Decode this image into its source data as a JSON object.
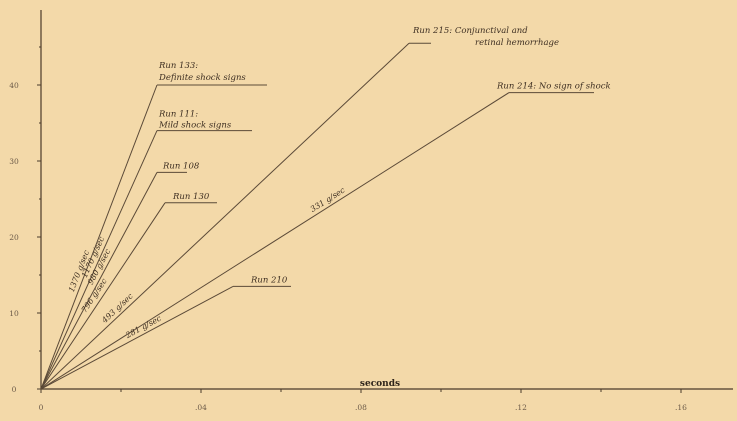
{
  "chart_data": {
    "type": "line",
    "title": "",
    "xlabel": "seconds",
    "ylabel": "",
    "xlim": [
      0,
      0.18
    ],
    "ylim": [
      0,
      48
    ],
    "x_ticks": [
      0,
      0.04,
      0.08,
      0.12,
      0.16
    ],
    "x_tick_labels": [
      "0",
      ".04",
      ".08",
      ".12",
      ".16"
    ],
    "y_ticks": [
      0,
      10,
      20,
      30,
      40
    ],
    "y_tick_labels": [
      "0",
      "10",
      "20",
      "30",
      "40"
    ],
    "grid": false,
    "series": [
      {
        "name": "Run 133: Definite shock signs",
        "rate": "1370 g/sec",
        "points": [
          [
            0,
            0
          ],
          [
            0.029,
            40
          ]
        ]
      },
      {
        "name": "Run 111: Mild shock signs",
        "rate": "1170 g/sec",
        "points": [
          [
            0,
            0
          ],
          [
            0.029,
            34
          ]
        ]
      },
      {
        "name": "Run 108",
        "rate": "980 g/sec",
        "points": [
          [
            0,
            0
          ],
          [
            0.029,
            28.5
          ]
        ]
      },
      {
        "name": "Run 130",
        "rate": "796 g/sec",
        "points": [
          [
            0,
            0
          ],
          [
            0.031,
            24.5
          ]
        ]
      },
      {
        "name": "Run 215: Conjunctival and retinal hemorrhage",
        "rate": "493 g/sec",
        "points": [
          [
            0,
            0
          ],
          [
            0.092,
            45.5
          ]
        ]
      },
      {
        "name": "Run 214: No sign of shock",
        "rate": "331 g/sec",
        "points": [
          [
            0,
            0
          ],
          [
            0.117,
            39
          ]
        ]
      },
      {
        "name": "Run 210",
        "rate": "281 g/sec",
        "points": [
          [
            0,
            0
          ],
          [
            0.048,
            13.5
          ]
        ]
      }
    ]
  },
  "labels": {
    "run133": [
      "Run 133:",
      "Definite shock signs"
    ],
    "run111": [
      "Run 111:",
      "Mild shock signs"
    ],
    "run108": [
      "Run 108"
    ],
    "run130": [
      "Run 130"
    ],
    "run215": [
      "Run 215: Conjunctival and",
      "retinal hemorrhage"
    ],
    "run214": [
      "Run 214: No sign of shock"
    ],
    "run210": [
      "Run 210"
    ]
  }
}
